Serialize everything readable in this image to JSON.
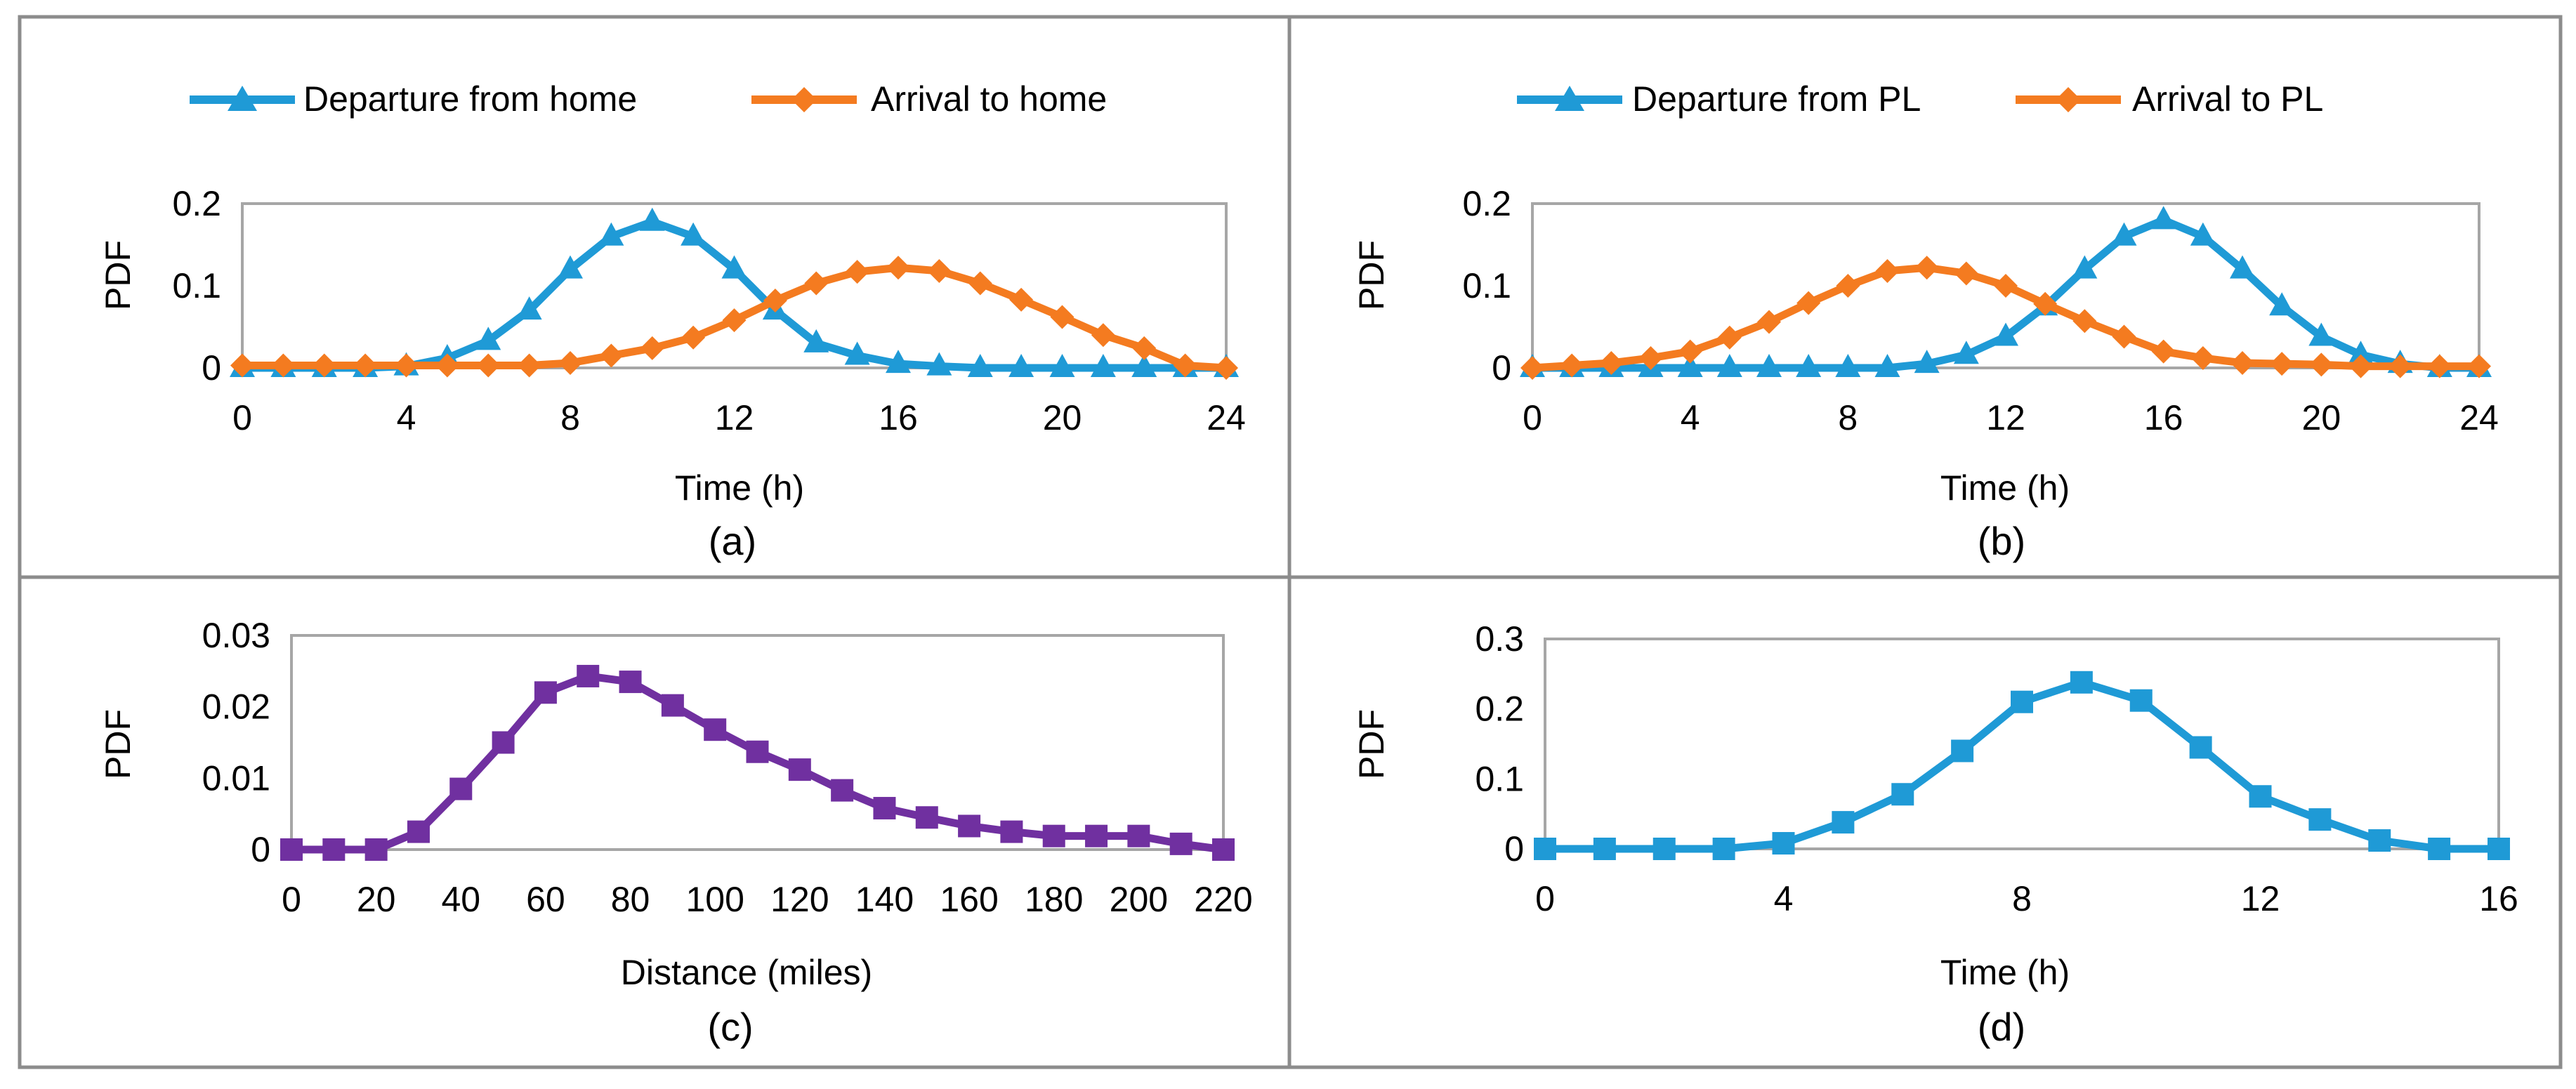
{
  "colors": {
    "blue": "#1f9ad6",
    "orange": "#f47b20",
    "purple": "#7030a0",
    "axis": "#a6a6a6",
    "panel_border": "#8c8c8c",
    "text": "#000000"
  },
  "chart_data": [
    {
      "type": "line",
      "panel_label": "(a)",
      "xlabel": "Time (h)",
      "ylabel": "PDF",
      "xlim": [
        0,
        24
      ],
      "ylim": [
        0,
        0.2
      ],
      "xticks": [
        0,
        4,
        8,
        12,
        16,
        20,
        24
      ],
      "yticks": [
        0,
        0.1,
        0.2
      ],
      "xtick_labels": [
        "0",
        "4",
        "8",
        "12",
        "16",
        "20",
        "24"
      ],
      "ytick_labels": [
        "0",
        "0.1",
        "0.2"
      ],
      "legend_position": "top",
      "x": [
        0,
        1,
        2,
        3,
        4,
        5,
        6,
        7,
        8,
        9,
        10,
        11,
        12,
        13,
        14,
        15,
        16,
        17,
        18,
        19,
        20,
        21,
        22,
        23,
        24
      ],
      "series": [
        {
          "name": "Departure from home",
          "color": "#1f9ad6",
          "marker": "triangle",
          "values": [
            0,
            0,
            0,
            0,
            0.002,
            0.012,
            0.033,
            0.07,
            0.12,
            0.16,
            0.178,
            0.16,
            0.12,
            0.07,
            0.03,
            0.015,
            0.005,
            0.002,
            0,
            0,
            0,
            0,
            0,
            0,
            0
          ]
        },
        {
          "name": "Arrival to home",
          "color": "#f47b20",
          "marker": "diamond",
          "values": [
            0.003,
            0.003,
            0.003,
            0.003,
            0.003,
            0.003,
            0.003,
            0.003,
            0.006,
            0.015,
            0.024,
            0.037,
            0.058,
            0.082,
            0.103,
            0.117,
            0.122,
            0.118,
            0.103,
            0.083,
            0.062,
            0.04,
            0.024,
            0.003,
            0
          ]
        }
      ]
    },
    {
      "type": "line",
      "panel_label": "(b)",
      "xlabel": "Time (h)",
      "ylabel": "PDF",
      "xlim": [
        0,
        24
      ],
      "ylim": [
        0,
        0.2
      ],
      "xticks": [
        0,
        4,
        8,
        12,
        16,
        20,
        24
      ],
      "yticks": [
        0,
        0.1,
        0.2
      ],
      "xtick_labels": [
        "0",
        "4",
        "8",
        "12",
        "16",
        "20",
        "24"
      ],
      "ytick_labels": [
        "0",
        "0.1",
        "0.2"
      ],
      "legend_position": "top",
      "x": [
        0,
        1,
        2,
        3,
        4,
        5,
        6,
        7,
        8,
        9,
        10,
        11,
        12,
        13,
        14,
        15,
        16,
        17,
        18,
        19,
        20,
        21,
        22,
        23,
        24
      ],
      "series": [
        {
          "name": "Departure from PL",
          "color": "#1f9ad6",
          "marker": "triangle",
          "values": [
            0,
            0,
            0,
            0,
            0,
            0,
            0,
            0,
            0,
            0,
            0.005,
            0.016,
            0.038,
            0.075,
            0.12,
            0.16,
            0.18,
            0.16,
            0.12,
            0.075,
            0.038,
            0.016,
            0.005,
            0,
            0
          ]
        },
        {
          "name": "Arrival to PL",
          "color": "#f47b20",
          "marker": "diamond",
          "values": [
            0,
            0.003,
            0.006,
            0.012,
            0.02,
            0.037,
            0.056,
            0.079,
            0.1,
            0.118,
            0.122,
            0.115,
            0.1,
            0.078,
            0.057,
            0.038,
            0.02,
            0.012,
            0.006,
            0.005,
            0.004,
            0.002,
            0.002,
            0.002,
            0.002
          ]
        }
      ]
    },
    {
      "type": "line",
      "panel_label": "(c)",
      "xlabel": "Distance (miles)",
      "ylabel": "PDF",
      "xlim": [
        0,
        220
      ],
      "ylim": [
        0,
        0.03
      ],
      "xticks": [
        0,
        20,
        40,
        60,
        80,
        100,
        120,
        140,
        160,
        180,
        200,
        220
      ],
      "yticks": [
        0,
        0.01,
        0.02,
        0.03
      ],
      "xtick_labels": [
        "0",
        "20",
        "40",
        "60",
        "80",
        "100",
        "120",
        "140",
        "160",
        "180",
        "200",
        "220"
      ],
      "ytick_labels": [
        "0",
        "0.01",
        "0.02",
        "0.03"
      ],
      "x": [
        0,
        10,
        20,
        30,
        40,
        50,
        60,
        70,
        80,
        90,
        100,
        110,
        120,
        130,
        140,
        150,
        160,
        170,
        180,
        190,
        200,
        210,
        220
      ],
      "series": [
        {
          "name": "Distance",
          "color": "#7030a0",
          "marker": "square",
          "values": [
            0,
            0,
            0,
            0.0025,
            0.0085,
            0.015,
            0.022,
            0.0243,
            0.0235,
            0.0202,
            0.0168,
            0.0137,
            0.0112,
            0.0083,
            0.0058,
            0.0045,
            0.0033,
            0.0025,
            0.0019,
            0.0019,
            0.0019,
            0.0008,
            0
          ]
        }
      ]
    },
    {
      "type": "line",
      "panel_label": "(d)",
      "xlabel": "Time (h)",
      "ylabel": "PDF",
      "xlim": [
        0,
        16
      ],
      "ylim": [
        0,
        0.3
      ],
      "xticks": [
        0,
        4,
        8,
        12,
        16
      ],
      "yticks": [
        0,
        0.1,
        0.2,
        0.3
      ],
      "xtick_labels": [
        "0",
        "4",
        "8",
        "12",
        "16"
      ],
      "ytick_labels": [
        "0",
        "0.1",
        "0.2",
        "0.3"
      ],
      "x": [
        0,
        1,
        2,
        3,
        4,
        5,
        6,
        7,
        8,
        9,
        10,
        11,
        12,
        13,
        14,
        15,
        16
      ],
      "series": [
        {
          "name": "Time",
          "color": "#1f9ad6",
          "marker": "square",
          "values": [
            0,
            0,
            0,
            0,
            0.008,
            0.038,
            0.078,
            0.14,
            0.21,
            0.238,
            0.212,
            0.145,
            0.075,
            0.042,
            0.012,
            0,
            0
          ]
        }
      ]
    }
  ]
}
